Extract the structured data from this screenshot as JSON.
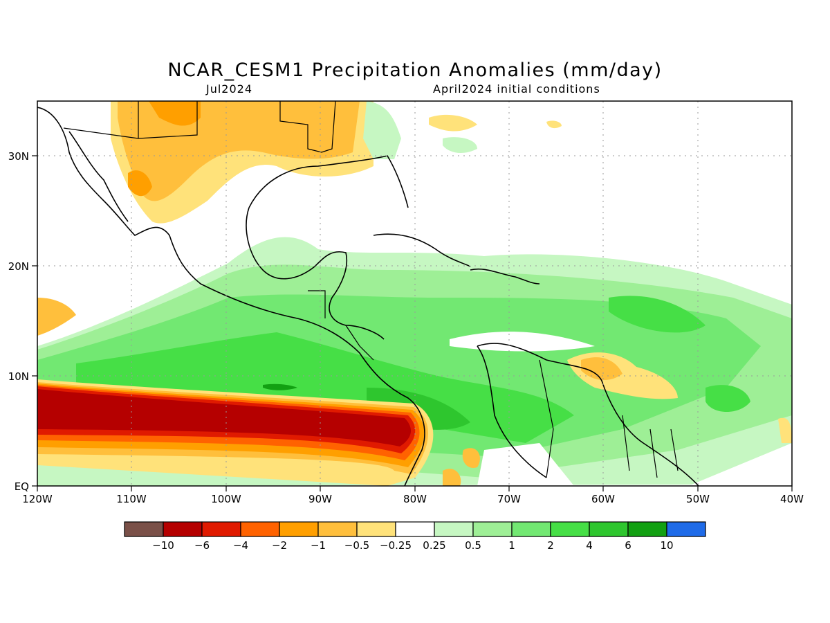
{
  "title": "NCAR_CESM1 Precipitation Anomalies (mm/day)",
  "subtitle_left": "Jul2024",
  "subtitle_right": "April2024 initial conditions",
  "map": {
    "lon_range": [
      -120,
      -40
    ],
    "lat_range": [
      0,
      35
    ],
    "x_ticks": [
      "120W",
      "110W",
      "100W",
      "90W",
      "80W",
      "70W",
      "60W",
      "50W",
      "40W"
    ],
    "y_ticks": [
      "EQ",
      "10N",
      "20N",
      "30N"
    ],
    "grid": "dotted"
  },
  "colorbar": {
    "colors": [
      "#7a5048",
      "#b50000",
      "#e01a00",
      "#ff6200",
      "#ff9f00",
      "#ffbf3c",
      "#ffe27a",
      "#ffffff",
      "#c6f7c2",
      "#9eef96",
      "#72e872",
      "#46df46",
      "#2ec62e",
      "#12a012",
      "#1f6be8"
    ],
    "labels": [
      "−10",
      "−6",
      "−4",
      "−2",
      "−1",
      "−0.5",
      "−0.25",
      "0.25",
      "0.5",
      "1",
      "2",
      "4",
      "6",
      "10"
    ]
  },
  "anomaly_regions": [
    {
      "name": "eastern-pacific-itcz-deficit",
      "level": "-10",
      "color": "#b50000"
    },
    {
      "name": "central-america-caribbean-surplus",
      "level": "2",
      "color": "#72e872"
    },
    {
      "name": "mexico-southern-us-deficit",
      "level": "-1",
      "color": "#ffbf3c"
    }
  ]
}
